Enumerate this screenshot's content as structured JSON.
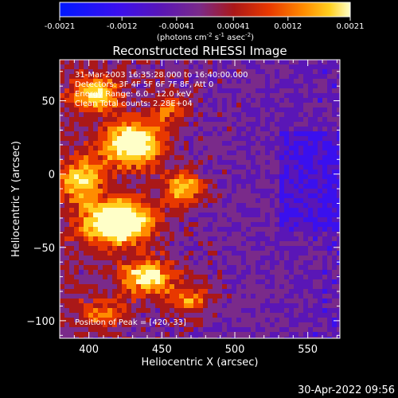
{
  "colorbar": {
    "tick_labels": [
      "-0.0021",
      "-0.0012",
      "-0.00041",
      "0.00041",
      "0.0012",
      "0.0021"
    ],
    "tick_values": [
      -0.0021,
      -0.0012,
      -0.00041,
      0.00041,
      0.0012,
      0.0021
    ],
    "range": [
      -0.0021,
      0.0021
    ],
    "units_label": "(photons cm",
    "units_sup1": "-2",
    "units_mid1": " s",
    "units_sup2": "-1",
    "units_mid2": " asec",
    "units_sup3": "-2",
    "units_end": ")",
    "colors": [
      "#0018ff",
      "#3a10ee",
      "#5a16b6",
      "#7a2a8a",
      "#aa1818",
      "#e83800",
      "#ff8c00",
      "#ffd020",
      "#ffffc8"
    ]
  },
  "chart_data": {
    "type": "heatmap",
    "title": "Reconstructed RHESSI Image",
    "xlabel": "Heliocentric X (arcsec)",
    "ylabel": "Heliocentric Y (arcsec)",
    "xlim": [
      380,
      572
    ],
    "ylim": [
      -112,
      78
    ],
    "x_ticks": [
      400,
      450,
      500,
      550
    ],
    "y_ticks": [
      -100,
      -50,
      0,
      50
    ],
    "x_tick_labels": [
      "400",
      "450",
      "500",
      "550"
    ],
    "y_tick_labels": [
      "−100",
      "−50",
      "0",
      "50"
    ],
    "annotations": [
      "31-Mar-2003 16:35:28.000 to 16:40:00.000",
      "Detectors: 3F 4F 5F 6F 7F 8F, Att 0",
      "Energy Range: 6.0 - 12.0 keV",
      "Clean      Total counts: 2.28E+04"
    ],
    "peak_label": "Position of Peak = [420,-33]",
    "peak": [
      420,
      -33
    ],
    "grid": false
  },
  "footer": {
    "timestamp": "30-Apr-2022 09:56"
  }
}
